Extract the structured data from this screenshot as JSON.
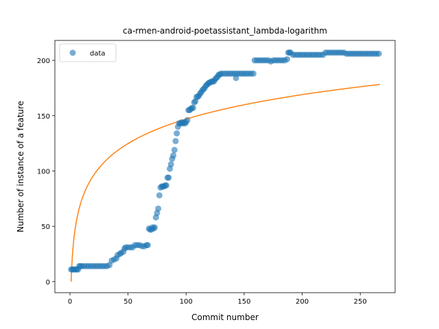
{
  "chart_data": {
    "type": "scatter",
    "title": "ca-rmen-android-poetassistant_lambda-logarithm",
    "xlabel": "Commit number",
    "ylabel": "Number of instance of a feature",
    "xlim": [
      -13,
      280
    ],
    "ylim": [
      -10,
      218
    ],
    "xticks": [
      0,
      50,
      100,
      150,
      200,
      250
    ],
    "yticks": [
      0,
      50,
      100,
      150,
      200
    ],
    "grid": false,
    "legend": {
      "position": "top-left",
      "entries": [
        "data"
      ]
    },
    "colors": {
      "data": "#1f77b4",
      "fit": "#ff7f0e"
    },
    "series": [
      {
        "name": "data",
        "kind": "scatter",
        "points": [
          [
            1,
            11
          ],
          [
            2,
            11
          ],
          [
            3,
            11
          ],
          [
            4,
            11
          ],
          [
            5,
            11
          ],
          [
            6,
            11
          ],
          [
            7,
            11
          ],
          [
            8,
            14
          ],
          [
            9,
            14
          ],
          [
            10,
            14
          ],
          [
            12,
            14
          ],
          [
            14,
            14
          ],
          [
            16,
            14
          ],
          [
            18,
            14
          ],
          [
            20,
            14
          ],
          [
            22,
            14
          ],
          [
            24,
            14
          ],
          [
            26,
            14
          ],
          [
            28,
            14
          ],
          [
            30,
            14
          ],
          [
            32,
            14
          ],
          [
            34,
            15
          ],
          [
            36,
            19
          ],
          [
            38,
            20
          ],
          [
            40,
            21
          ],
          [
            41,
            24
          ],
          [
            43,
            25
          ],
          [
            44,
            26
          ],
          [
            46,
            27
          ],
          [
            47,
            30
          ],
          [
            48,
            31
          ],
          [
            50,
            31
          ],
          [
            52,
            31
          ],
          [
            54,
            31
          ],
          [
            56,
            33
          ],
          [
            58,
            33
          ],
          [
            60,
            33
          ],
          [
            62,
            32
          ],
          [
            64,
            32
          ],
          [
            66,
            33
          ],
          [
            67,
            33
          ],
          [
            68,
            48
          ],
          [
            69,
            47
          ],
          [
            70,
            47
          ],
          [
            71,
            49
          ],
          [
            72,
            48
          ],
          [
            73,
            49
          ],
          [
            74,
            58
          ],
          [
            75,
            62
          ],
          [
            76,
            66
          ],
          [
            77,
            78
          ],
          [
            78,
            85
          ],
          [
            79,
            86
          ],
          [
            80,
            86
          ],
          [
            81,
            86
          ],
          [
            82,
            87
          ],
          [
            83,
            87
          ],
          [
            84,
            94
          ],
          [
            85,
            94
          ],
          [
            86,
            102
          ],
          [
            87,
            106
          ],
          [
            88,
            111
          ],
          [
            89,
            114
          ],
          [
            90,
            119
          ],
          [
            91,
            127
          ],
          [
            92,
            134
          ],
          [
            93,
            140
          ],
          [
            94,
            143
          ],
          [
            95,
            143
          ],
          [
            96,
            144
          ],
          [
            97,
            143
          ],
          [
            98,
            144
          ],
          [
            99,
            143
          ],
          [
            100,
            144
          ],
          [
            101,
            146
          ],
          [
            102,
            155
          ],
          [
            103,
            155
          ],
          [
            104,
            156
          ],
          [
            105,
            157
          ],
          [
            106,
            157
          ],
          [
            107,
            162
          ],
          [
            108,
            163
          ],
          [
            109,
            167
          ],
          [
            110,
            167
          ],
          [
            111,
            168
          ],
          [
            112,
            170
          ],
          [
            113,
            171
          ],
          [
            114,
            173
          ],
          [
            115,
            174
          ],
          [
            116,
            175
          ],
          [
            117,
            177
          ],
          [
            118,
            178
          ],
          [
            119,
            179
          ],
          [
            120,
            180
          ],
          [
            121,
            180
          ],
          [
            122,
            181
          ],
          [
            123,
            181
          ],
          [
            124,
            181
          ],
          [
            125,
            183
          ],
          [
            126,
            184
          ],
          [
            127,
            185
          ],
          [
            128,
            187
          ],
          [
            129,
            187
          ],
          [
            130,
            188
          ],
          [
            132,
            188
          ],
          [
            134,
            188
          ],
          [
            136,
            188
          ],
          [
            138,
            188
          ],
          [
            140,
            188
          ],
          [
            142,
            188
          ],
          [
            143,
            184
          ],
          [
            144,
            188
          ],
          [
            146,
            188
          ],
          [
            148,
            188
          ],
          [
            150,
            188
          ],
          [
            152,
            188
          ],
          [
            154,
            188
          ],
          [
            156,
            188
          ],
          [
            158,
            188
          ],
          [
            159,
            200
          ],
          [
            161,
            200
          ],
          [
            163,
            200
          ],
          [
            165,
            200
          ],
          [
            167,
            200
          ],
          [
            169,
            200
          ],
          [
            171,
            200
          ],
          [
            173,
            199
          ],
          [
            175,
            200
          ],
          [
            177,
            200
          ],
          [
            179,
            200
          ],
          [
            181,
            200
          ],
          [
            183,
            200
          ],
          [
            185,
            200
          ],
          [
            187,
            201
          ],
          [
            188,
            207
          ],
          [
            189,
            207
          ],
          [
            190,
            207
          ],
          [
            192,
            205
          ],
          [
            194,
            205
          ],
          [
            196,
            205
          ],
          [
            198,
            205
          ],
          [
            200,
            205
          ],
          [
            202,
            205
          ],
          [
            204,
            205
          ],
          [
            206,
            205
          ],
          [
            208,
            205
          ],
          [
            210,
            205
          ],
          [
            212,
            205
          ],
          [
            214,
            205
          ],
          [
            216,
            205
          ],
          [
            218,
            205
          ],
          [
            220,
            207
          ],
          [
            222,
            207
          ],
          [
            224,
            207
          ],
          [
            226,
            207
          ],
          [
            228,
            207
          ],
          [
            230,
            207
          ],
          [
            232,
            207
          ],
          [
            234,
            207
          ],
          [
            236,
            207
          ],
          [
            238,
            206
          ],
          [
            240,
            206
          ],
          [
            242,
            206
          ],
          [
            244,
            206
          ],
          [
            246,
            206
          ],
          [
            248,
            206
          ],
          [
            250,
            206
          ],
          [
            252,
            206
          ],
          [
            254,
            206
          ],
          [
            256,
            206
          ],
          [
            258,
            206
          ],
          [
            260,
            206
          ],
          [
            262,
            206
          ],
          [
            264,
            206
          ],
          [
            266,
            206
          ]
        ]
      },
      {
        "kind": "line",
        "function": "log",
        "x_range": [
          1,
          267
        ],
        "coefficients": {
          "a": 31.9,
          "b": 0
        }
      }
    ]
  }
}
